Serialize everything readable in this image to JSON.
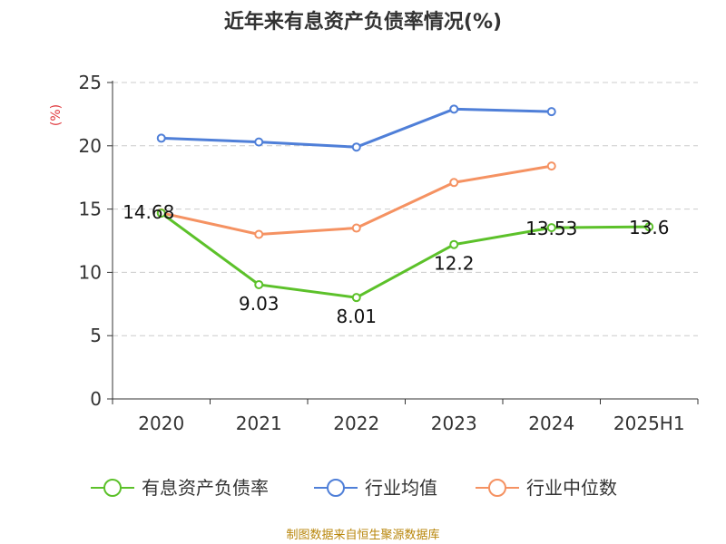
{
  "title": "近年来有息资产负债率情况(%)",
  "source": "制图数据来自恒生聚源数据库",
  "chart_data": {
    "type": "line",
    "title": "近年来有息资产负债率情况(%)",
    "ylabel": "(%)",
    "ylim": [
      0,
      25
    ],
    "yticks": [
      0,
      5,
      10,
      15,
      20,
      25
    ],
    "categories": [
      "2020",
      "2021",
      "2022",
      "2023",
      "2024",
      "2025H1"
    ],
    "grid": true,
    "legend_position": "bottom",
    "series": [
      {
        "name": "有息资产负债率",
        "color": "#5cc12a",
        "values": [
          14.68,
          9.03,
          8.01,
          12.2,
          13.53,
          13.6
        ],
        "data_labels": [
          "14.68",
          "9.03",
          "8.01",
          "12.2",
          "13.53",
          "13.6"
        ]
      },
      {
        "name": "行业均值",
        "color": "#4f7fd8",
        "values": [
          20.6,
          20.3,
          19.9,
          22.9,
          22.7,
          null
        ]
      },
      {
        "name": "行业中位数",
        "color": "#f59262",
        "values": [
          14.7,
          13.0,
          13.5,
          17.1,
          18.4,
          null
        ]
      }
    ]
  }
}
